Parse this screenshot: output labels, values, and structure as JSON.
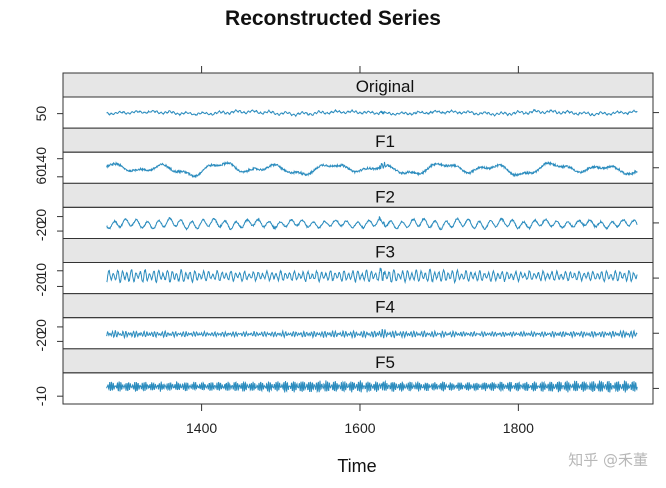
{
  "watermark": "知乎 @禾董",
  "chart_data": {
    "type": "line",
    "title": "Reconstructed Series",
    "xlabel": "Time",
    "ylabel": "",
    "xlim": [
      1225,
      1970
    ],
    "x_ticks": [
      1400,
      1600,
      1800
    ],
    "x_start": 1280,
    "x_end": 1950,
    "line_color": "#2b8cbe",
    "strip_color": "#e6e6e6",
    "grid": false,
    "panels": [
      {
        "name": "Original",
        "ylim": [
          20,
          85
        ],
        "y_tick_labels": [
          "50"
        ],
        "y_tick_values": [
          50
        ],
        "baseline": 52,
        "amplitude": 5,
        "freq_mix": "mixed"
      },
      {
        "name": "F1",
        "ylim": [
          40,
          160
        ],
        "y_tick_labels": [
          "60",
          "140"
        ],
        "y_tick_values": [
          60,
          140
        ],
        "baseline": 95,
        "amplitude": 22,
        "freq_mix": "low"
      },
      {
        "name": "F2",
        "ylim": [
          -35,
          40
        ],
        "y_tick_labels": [
          "-20",
          "20"
        ],
        "y_tick_values": [
          -20,
          20
        ],
        "baseline": 0,
        "amplitude": 10,
        "freq_mix": "mid"
      },
      {
        "name": "F3",
        "ylim": [
          -30,
          22
        ],
        "y_tick_labels": [
          "-20",
          "10"
        ],
        "y_tick_values": [
          -20,
          10
        ],
        "baseline": 0,
        "amplitude": 8,
        "freq_mix": "high"
      },
      {
        "name": "F4",
        "ylim": [
          -35,
          40
        ],
        "y_tick_labels": [
          "-20",
          "20"
        ],
        "y_tick_values": [
          -20,
          20
        ],
        "baseline": 0,
        "amplitude": 6,
        "freq_mix": "higher"
      },
      {
        "name": "F5",
        "ylim": [
          -16,
          12
        ],
        "y_tick_labels": [
          "-10"
        ],
        "y_tick_values": [
          -10
        ],
        "baseline": 0,
        "amplitude": 4,
        "freq_mix": "highest"
      }
    ]
  }
}
